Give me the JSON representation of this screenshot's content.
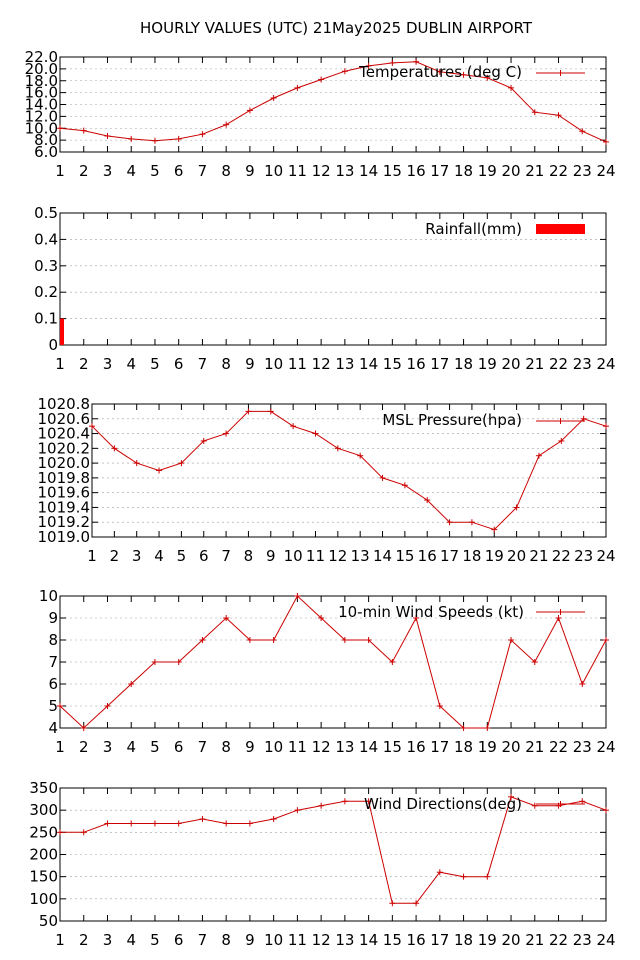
{
  "title": "HOURLY VALUES (UTC) 21May2025  DUBLIN AIRPORT",
  "chart_data": [
    {
      "type": "line",
      "series_name": "Temperatures (deg C)",
      "x": [
        1,
        2,
        3,
        4,
        5,
        6,
        7,
        8,
        9,
        10,
        11,
        12,
        13,
        14,
        15,
        16,
        17,
        18,
        19,
        20,
        21,
        22,
        23,
        24
      ],
      "values": [
        10.0,
        9.6,
        8.7,
        8.2,
        7.9,
        8.2,
        9.0,
        10.6,
        13.0,
        15.1,
        16.8,
        18.2,
        19.6,
        20.5,
        21.0,
        21.2,
        19.5,
        19.0,
        18.5,
        16.8,
        12.7,
        12.2,
        9.5,
        7.7
      ],
      "ylim": [
        6.0,
        22.0
      ],
      "yticks": [
        "6.0",
        "8.0",
        "10.0",
        "12.0",
        "14.0",
        "16.0",
        "18.0",
        "20.0",
        "22.0"
      ],
      "xticks": [
        "1",
        "2",
        "3",
        "4",
        "5",
        "6",
        "7",
        "8",
        "9",
        "10",
        "11",
        "12",
        "13",
        "14",
        "15",
        "16",
        "17",
        "18",
        "19",
        "20",
        "21",
        "22",
        "23",
        "24"
      ]
    },
    {
      "type": "bar",
      "series_name": "Rainfall(mm)",
      "x": [
        1,
        2,
        3,
        4,
        5,
        6,
        7,
        8,
        9,
        10,
        11,
        12,
        13,
        14,
        15,
        16,
        17,
        18,
        19,
        20,
        21,
        22,
        23,
        24
      ],
      "values": [
        0.1,
        0,
        0,
        0,
        0,
        0,
        0,
        0,
        0,
        0,
        0,
        0,
        0,
        0,
        0,
        0,
        0,
        0,
        0,
        0,
        0,
        0,
        0,
        0
      ],
      "ylim": [
        0,
        0.5
      ],
      "yticks": [
        "0",
        "0.1",
        "0.2",
        "0.3",
        "0.4",
        "0.5"
      ],
      "xticks": [
        "1",
        "2",
        "3",
        "4",
        "5",
        "6",
        "7",
        "8",
        "9",
        "10",
        "11",
        "12",
        "13",
        "14",
        "15",
        "16",
        "17",
        "18",
        "19",
        "20",
        "21",
        "22",
        "23",
        "24"
      ]
    },
    {
      "type": "line",
      "series_name": "MSL Pressure(hpa)",
      "x": [
        1,
        2,
        3,
        4,
        5,
        6,
        7,
        8,
        9,
        10,
        11,
        12,
        13,
        14,
        15,
        16,
        17,
        18,
        19,
        20,
        21,
        22,
        23,
        24
      ],
      "values": [
        1020.5,
        1020.2,
        1020.0,
        1019.9,
        1020.0,
        1020.3,
        1020.4,
        1020.7,
        1020.7,
        1020.5,
        1020.4,
        1020.2,
        1020.1,
        1019.8,
        1019.7,
        1019.5,
        1019.2,
        1019.2,
        1019.1,
        1019.4,
        1020.1,
        1020.3,
        1020.6,
        1020.5
      ],
      "ylim": [
        1019.0,
        1020.8
      ],
      "yticks": [
        "1019.0",
        "1019.2",
        "1019.4",
        "1019.6",
        "1019.8",
        "1020.0",
        "1020.2",
        "1020.4",
        "1020.6",
        "1020.8"
      ],
      "xticks": [
        "1",
        "2",
        "3",
        "4",
        "5",
        "6",
        "7",
        "8",
        "9",
        "10",
        "11",
        "12",
        "13",
        "14",
        "15",
        "16",
        "17",
        "18",
        "19",
        "20",
        "21",
        "22",
        "23",
        "24"
      ]
    },
    {
      "type": "line",
      "series_name": "10-min Wind Speeds (kt)",
      "x": [
        1,
        2,
        3,
        4,
        5,
        6,
        7,
        8,
        9,
        10,
        11,
        12,
        13,
        14,
        15,
        16,
        17,
        18,
        19,
        20,
        21,
        22,
        23,
        24
      ],
      "values": [
        5,
        4,
        5,
        6,
        7,
        7,
        8,
        9,
        8,
        8,
        10,
        9,
        8,
        8,
        7,
        9,
        5,
        4,
        4,
        8,
        7,
        9,
        6,
        8
      ],
      "ylim": [
        4,
        10
      ],
      "yticks": [
        "4",
        "5",
        "6",
        "7",
        "8",
        "9",
        "10"
      ],
      "xticks": [
        "1",
        "2",
        "3",
        "4",
        "5",
        "6",
        "7",
        "8",
        "9",
        "10",
        "11",
        "12",
        "13",
        "14",
        "15",
        "16",
        "17",
        "18",
        "19",
        "20",
        "21",
        "22",
        "23",
        "24"
      ]
    },
    {
      "type": "line",
      "series_name": "Wind Directions(deg)",
      "x": [
        1,
        2,
        3,
        4,
        5,
        6,
        7,
        8,
        9,
        10,
        11,
        12,
        13,
        14,
        15,
        16,
        17,
        18,
        19,
        20,
        21,
        22,
        23,
        24
      ],
      "values": [
        250,
        250,
        270,
        270,
        270,
        270,
        280,
        270,
        270,
        280,
        300,
        310,
        320,
        320,
        90,
        90,
        160,
        150,
        150,
        330,
        310,
        310,
        320,
        300
      ],
      "ylim": [
        50,
        350
      ],
      "yticks": [
        "50",
        "100",
        "150",
        "200",
        "250",
        "300",
        "350"
      ],
      "xticks": [
        "1",
        "2",
        "3",
        "4",
        "5",
        "6",
        "7",
        "8",
        "9",
        "10",
        "11",
        "12",
        "13",
        "14",
        "15",
        "16",
        "17",
        "18",
        "19",
        "20",
        "21",
        "22",
        "23",
        "24"
      ]
    }
  ],
  "colors": {
    "series": "#cc0000",
    "rain_bar": "#ff0000",
    "grid": "#a0a0a0"
  }
}
